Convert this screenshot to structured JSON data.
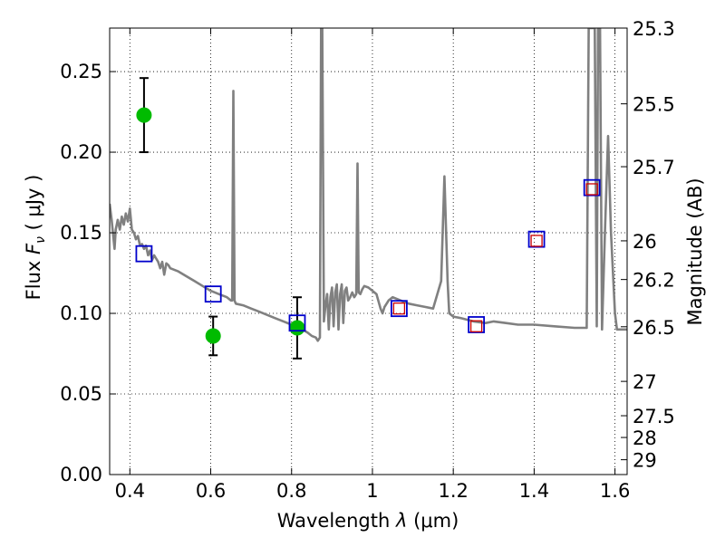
{
  "chart_data": {
    "type": "scatter",
    "title": "",
    "xlabel": {
      "prefix": "Wavelength  ",
      "symbol": "λ",
      "units": " (μm)"
    },
    "ylabel": {
      "prefix": "Flux  ",
      "symbol": "F",
      "subscript": "ν",
      "units": "  ( μJy )"
    },
    "y2label": "Magnitude (AB)",
    "xlim": [
      0.35,
      1.63
    ],
    "ylim": [
      0.0,
      0.277
    ],
    "grid": true,
    "grid_style": "dotted",
    "xticks": [
      0.4,
      0.6,
      0.8,
      1.0,
      1.2,
      1.4,
      1.6
    ],
    "xtick_labels": [
      "0.4",
      "0.6",
      "0.8",
      "1",
      "1.2",
      "1.4",
      "1.6"
    ],
    "yticks": [
      0.0,
      0.05,
      0.1,
      0.15,
      0.2,
      0.25
    ],
    "ytick_labels": [
      "0.00",
      "0.05",
      "0.10",
      "0.15",
      "0.20",
      "0.25"
    ],
    "mag_ticks": [
      {
        "label": "25.3",
        "y": 0.277
      },
      {
        "label": "25.5",
        "y": 0.23
      },
      {
        "label": "25.7",
        "y": 0.191
      },
      {
        "label": "26",
        "y": 0.145
      },
      {
        "label": "26.2",
        "y": 0.121
      },
      {
        "label": "26.5",
        "y": 0.0917
      },
      {
        "label": "27",
        "y": 0.0578
      },
      {
        "label": "27.5",
        "y": 0.0365
      },
      {
        "label": "28",
        "y": 0.023
      },
      {
        "label": "29",
        "y": 0.0092
      }
    ],
    "series": [
      {
        "kind": "errorbar",
        "color": "#00bb00",
        "error_color": "#000000",
        "points": [
          {
            "x": 0.435,
            "y": 0.223,
            "yerr": 0.023
          },
          {
            "x": 0.606,
            "y": 0.086,
            "yerr": 0.012
          },
          {
            "x": 0.814,
            "y": 0.091,
            "yerr": 0.019
          }
        ]
      },
      {
        "kind": "open-square",
        "color": "#0000cc",
        "points": [
          {
            "x": 0.435,
            "y": 0.137
          },
          {
            "x": 0.606,
            "y": 0.112
          },
          {
            "x": 0.814,
            "y": 0.094
          },
          {
            "x": 1.066,
            "y": 0.103
          },
          {
            "x": 1.257,
            "y": 0.093
          },
          {
            "x": 1.406,
            "y": 0.146
          },
          {
            "x": 1.543,
            "y": 0.178
          }
        ]
      },
      {
        "kind": "small-open-square",
        "color": "#cc0000",
        "points": [
          {
            "x": 1.066,
            "y": 0.103
          },
          {
            "x": 1.257,
            "y": 0.092
          },
          {
            "x": 1.406,
            "y": 0.145
          },
          {
            "x": 1.543,
            "y": 0.177
          }
        ]
      },
      {
        "kind": "line",
        "color": "#808080",
        "points": [
          [
            0.35,
            0.168
          ],
          [
            0.355,
            0.158
          ],
          [
            0.36,
            0.145
          ],
          [
            0.362,
            0.14
          ],
          [
            0.365,
            0.152
          ],
          [
            0.37,
            0.158
          ],
          [
            0.375,
            0.152
          ],
          [
            0.38,
            0.16
          ],
          [
            0.385,
            0.155
          ],
          [
            0.39,
            0.162
          ],
          [
            0.395,
            0.157
          ],
          [
            0.4,
            0.165
          ],
          [
            0.405,
            0.152
          ],
          [
            0.41,
            0.15
          ],
          [
            0.415,
            0.146
          ],
          [
            0.42,
            0.148
          ],
          [
            0.425,
            0.142
          ],
          [
            0.43,
            0.143
          ],
          [
            0.435,
            0.14
          ],
          [
            0.44,
            0.142
          ],
          [
            0.445,
            0.136
          ],
          [
            0.45,
            0.139
          ],
          [
            0.455,
            0.133
          ],
          [
            0.46,
            0.136
          ],
          [
            0.465,
            0.134
          ],
          [
            0.47,
            0.132
          ],
          [
            0.475,
            0.128
          ],
          [
            0.48,
            0.132
          ],
          [
            0.485,
            0.124
          ],
          [
            0.49,
            0.131
          ],
          [
            0.495,
            0.13
          ],
          [
            0.5,
            0.128
          ],
          [
            0.52,
            0.126
          ],
          [
            0.54,
            0.123
          ],
          [
            0.56,
            0.12
          ],
          [
            0.58,
            0.117
          ],
          [
            0.6,
            0.114
          ],
          [
            0.62,
            0.112
          ],
          [
            0.64,
            0.11
          ],
          [
            0.65,
            0.108
          ],
          [
            0.653,
            0.108
          ],
          [
            0.656,
            0.238
          ],
          [
            0.659,
            0.108
          ],
          [
            0.662,
            0.106
          ],
          [
            0.68,
            0.105
          ],
          [
            0.7,
            0.103
          ],
          [
            0.72,
            0.101
          ],
          [
            0.74,
            0.099
          ],
          [
            0.76,
            0.097
          ],
          [
            0.78,
            0.095
          ],
          [
            0.8,
            0.093
          ],
          [
            0.82,
            0.091
          ],
          [
            0.84,
            0.088
          ],
          [
            0.85,
            0.086
          ],
          [
            0.86,
            0.085
          ],
          [
            0.865,
            0.083
          ],
          [
            0.87,
            0.085
          ],
          [
            0.873,
            0.277
          ],
          [
            0.876,
            0.277
          ],
          [
            0.88,
            0.095
          ],
          [
            0.884,
            0.105
          ],
          [
            0.888,
            0.112
          ],
          [
            0.892,
            0.09
          ],
          [
            0.896,
            0.11
          ],
          [
            0.9,
            0.116
          ],
          [
            0.904,
            0.092
          ],
          [
            0.908,
            0.113
          ],
          [
            0.912,
            0.118
          ],
          [
            0.916,
            0.09
          ],
          [
            0.92,
            0.112
          ],
          [
            0.924,
            0.118
          ],
          [
            0.928,
            0.094
          ],
          [
            0.932,
            0.114
          ],
          [
            0.936,
            0.116
          ],
          [
            0.94,
            0.108
          ],
          [
            0.945,
            0.11
          ],
          [
            0.95,
            0.113
          ],
          [
            0.955,
            0.11
          ],
          [
            0.96,
            0.112
          ],
          [
            0.963,
            0.193
          ],
          [
            0.966,
            0.113
          ],
          [
            0.97,
            0.112
          ],
          [
            0.975,
            0.115
          ],
          [
            0.98,
            0.117
          ],
          [
            0.99,
            0.116
          ],
          [
            1.0,
            0.114
          ],
          [
            1.01,
            0.112
          ],
          [
            1.02,
            0.103
          ],
          [
            1.025,
            0.1
          ],
          [
            1.03,
            0.104
          ],
          [
            1.04,
            0.108
          ],
          [
            1.05,
            0.11
          ],
          [
            1.07,
            0.108
          ],
          [
            1.09,
            0.106
          ],
          [
            1.11,
            0.105
          ],
          [
            1.13,
            0.104
          ],
          [
            1.15,
            0.103
          ],
          [
            1.17,
            0.12
          ],
          [
            1.178,
            0.185
          ],
          [
            1.186,
            0.12
          ],
          [
            1.19,
            0.1
          ],
          [
            1.2,
            0.098
          ],
          [
            1.22,
            0.097
          ],
          [
            1.25,
            0.095
          ],
          [
            1.28,
            0.094
          ],
          [
            1.3,
            0.095
          ],
          [
            1.33,
            0.094
          ],
          [
            1.36,
            0.093
          ],
          [
            1.4,
            0.093
          ],
          [
            1.45,
            0.092
          ],
          [
            1.5,
            0.091
          ],
          [
            1.53,
            0.091
          ],
          [
            1.535,
            0.277
          ],
          [
            1.55,
            0.277
          ],
          [
            1.555,
            0.092
          ],
          [
            1.558,
            0.277
          ],
          [
            1.563,
            0.277
          ],
          [
            1.568,
            0.09
          ],
          [
            1.575,
            0.15
          ],
          [
            1.583,
            0.21
          ],
          [
            1.59,
            0.15
          ],
          [
            1.6,
            0.1
          ],
          [
            1.605,
            0.09
          ],
          [
            1.63,
            0.09
          ]
        ]
      }
    ]
  }
}
